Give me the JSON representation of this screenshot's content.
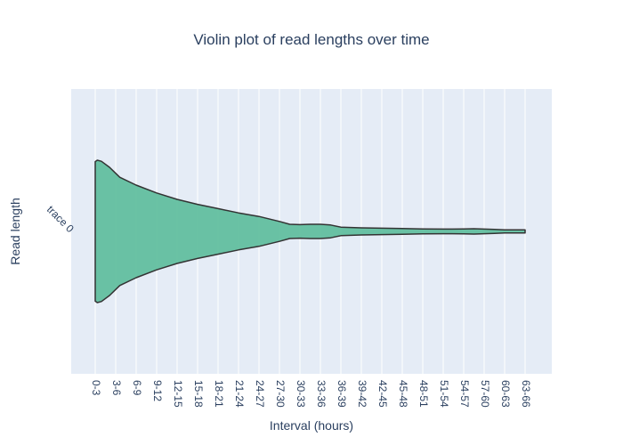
{
  "chart_data": {
    "type": "violin",
    "title": "Violin plot of read lengths over time",
    "xlabel": "Interval (hours)",
    "ylabel": "Read length",
    "categories": [
      "0-3",
      "3-6",
      "6-9",
      "9-12",
      "12-15",
      "15-18",
      "18-21",
      "21-24",
      "24-27",
      "27-30",
      "30-33",
      "33-36",
      "36-39",
      "39-42",
      "42-45",
      "45-48",
      "48-51",
      "51-54",
      "54-57",
      "57-60",
      "60-63",
      "63-66"
    ],
    "y_category_label": "trace 0",
    "grid": true,
    "legend": "none",
    "colors": {
      "fill": "#5bbd9b",
      "line": "#333333",
      "plot_bg": "#e5ecf6",
      "grid": "#ffffff",
      "text": "#2a3f5f"
    },
    "density_profile": {
      "x": [
        0,
        0.1,
        0.3,
        0.7,
        1.2,
        2,
        3,
        4,
        5,
        6,
        7,
        8,
        9,
        9.5,
        10,
        10.5,
        11,
        11.5,
        12,
        13,
        14,
        15,
        16,
        17,
        18,
        18.5,
        19,
        19.5,
        20,
        20.5,
        21
      ],
      "half_width": [
        0.98,
        1.0,
        0.985,
        0.9,
        0.76,
        0.65,
        0.54,
        0.45,
        0.38,
        0.32,
        0.26,
        0.21,
        0.14,
        0.1,
        0.095,
        0.1,
        0.1,
        0.09,
        0.06,
        0.05,
        0.045,
        0.04,
        0.035,
        0.033,
        0.034,
        0.038,
        0.033,
        0.027,
        0.022,
        0.022,
        0.022
      ]
    }
  }
}
